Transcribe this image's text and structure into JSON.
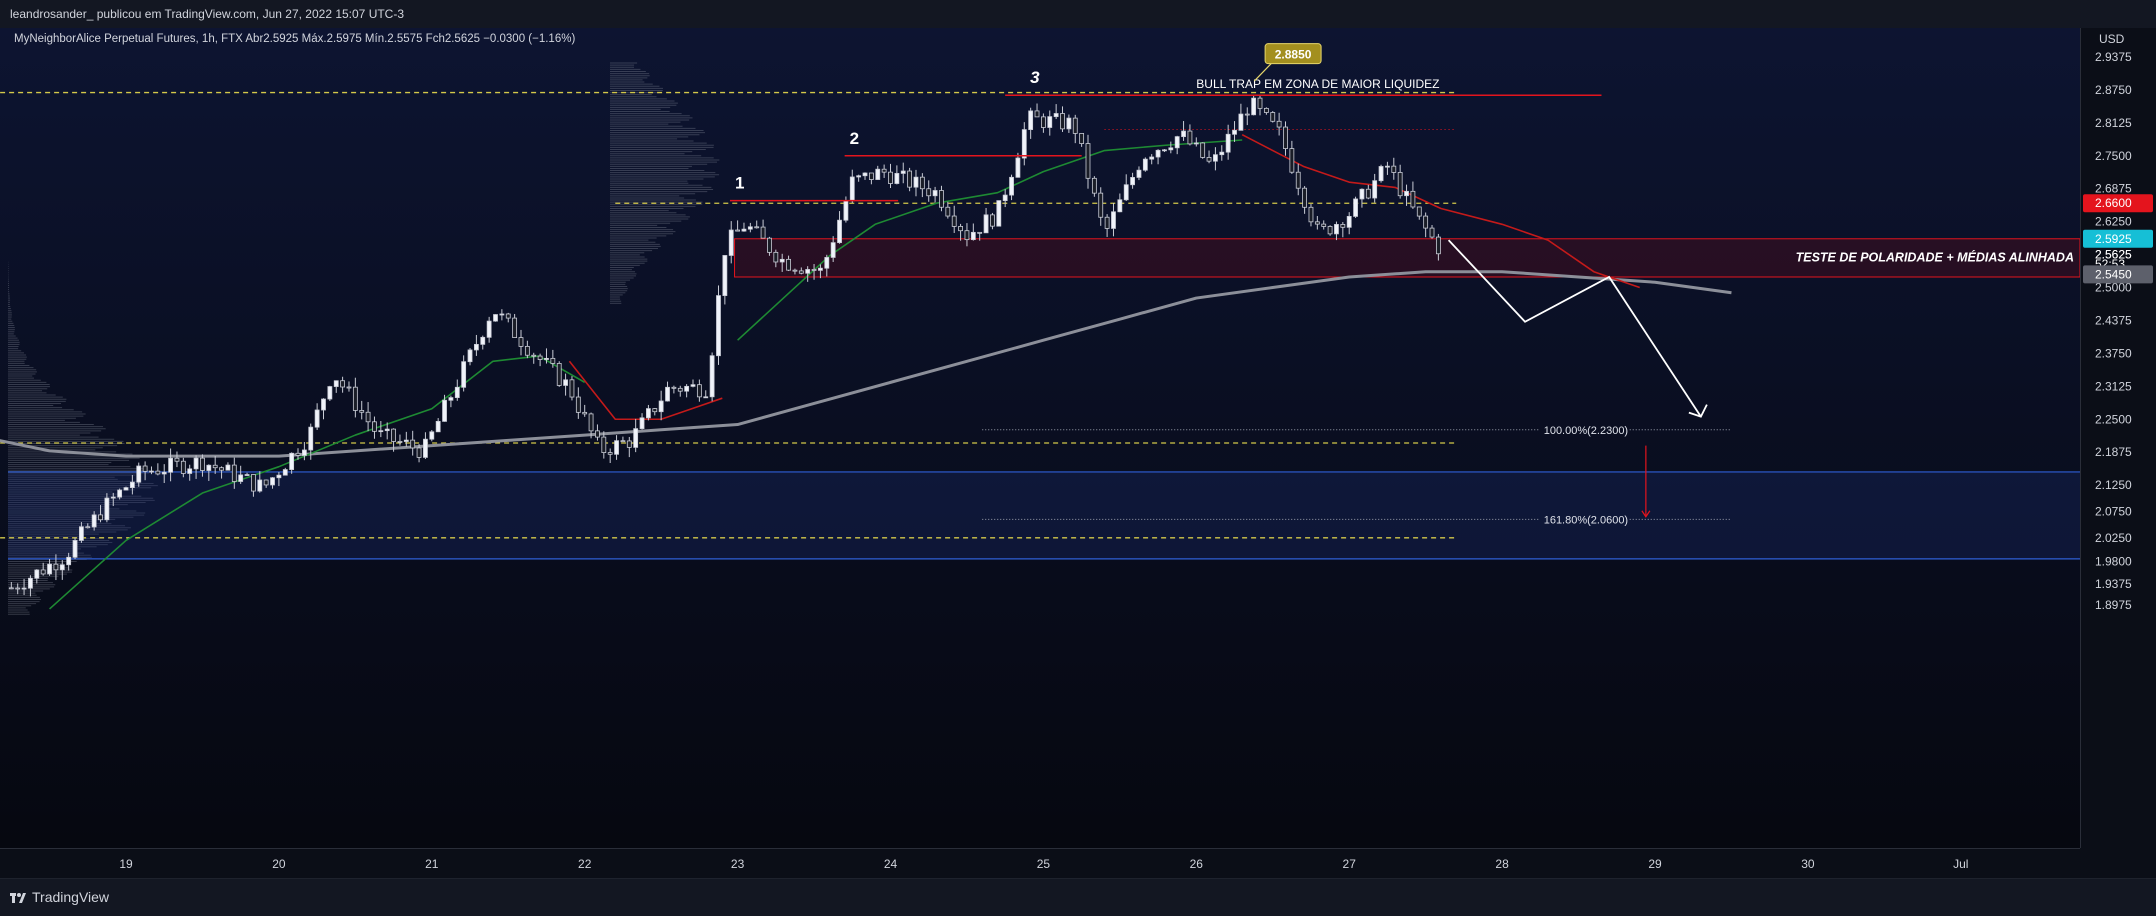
{
  "header": {
    "publisher": "leandrosander_ publicou em TradingView.com, Jun 27, 2022 15:07 UTC-3",
    "symbol_line": "MyNeighborAlice Perpetual Futures, 1h, FTX  Abr2.5925  Máx.2.5975  Mín.2.5575  Fch2.5625  −0.0300 (−1.16%)"
  },
  "footer": {
    "brand": "TradingView"
  },
  "chart_data": {
    "type": "candlestick",
    "currency": "USD",
    "ylim": [
      1.87,
      2.99
    ],
    "y_ticks": [
      "2.9375",
      "2.8750",
      "2.8125",
      "2.7500",
      "2.6875",
      "2.6250",
      "2.5625",
      "2.5000",
      "2.4375",
      "2.3750",
      "2.3125",
      "2.2500",
      "2.1875",
      "2.1250",
      "2.0750",
      "2.0250",
      "1.9800",
      "1.9375",
      "1.8975"
    ],
    "x_ticks": [
      "19",
      "20",
      "21",
      "22",
      "23",
      "24",
      "25",
      "26",
      "27",
      "28",
      "29",
      "30",
      "Jul"
    ],
    "price_tags": [
      {
        "label": "2.6600",
        "value": 2.66,
        "color": "#e4141d"
      },
      {
        "label": "2.5925",
        "value": 2.5925,
        "color": "#16bfd6"
      },
      {
        "label": "2.5625",
        "value": 2.5625,
        "color": "#0b0e17"
      },
      {
        "label": "52:53",
        "value": 2.545,
        "color": "#0b0e17"
      },
      {
        "label": "2.5450",
        "value": 2.525,
        "color": "#5d606b"
      }
    ],
    "ohlc_anchors": [
      {
        "day": 18.25,
        "price": 1.93
      },
      {
        "day": 18.6,
        "price": 1.99
      },
      {
        "day": 18.85,
        "price": 2.08
      },
      {
        "day": 19.1,
        "price": 2.15
      },
      {
        "day": 19.5,
        "price": 2.17
      },
      {
        "day": 19.9,
        "price": 2.12
      },
      {
        "day": 20.2,
        "price": 2.22
      },
      {
        "day": 20.35,
        "price": 2.34
      },
      {
        "day": 20.65,
        "price": 2.22
      },
      {
        "day": 20.95,
        "price": 2.19
      },
      {
        "day": 21.2,
        "price": 2.34
      },
      {
        "day": 21.4,
        "price": 2.46
      },
      {
        "day": 21.65,
        "price": 2.38
      },
      {
        "day": 21.9,
        "price": 2.31
      },
      {
        "day": 22.1,
        "price": 2.19
      },
      {
        "day": 22.3,
        "price": 2.21
      },
      {
        "day": 22.55,
        "price": 2.31
      },
      {
        "day": 22.8,
        "price": 2.31
      },
      {
        "day": 22.92,
        "price": 2.58
      },
      {
        "day": 23.05,
        "price": 2.62
      },
      {
        "day": 23.3,
        "price": 2.55
      },
      {
        "day": 23.55,
        "price": 2.53
      },
      {
        "day": 23.75,
        "price": 2.7
      },
      {
        "day": 23.95,
        "price": 2.72
      },
      {
        "day": 24.3,
        "price": 2.68
      },
      {
        "day": 24.5,
        "price": 2.6
      },
      {
        "day": 24.7,
        "price": 2.64
      },
      {
        "day": 24.9,
        "price": 2.82
      },
      {
        "day": 25.2,
        "price": 2.81
      },
      {
        "day": 25.4,
        "price": 2.6
      },
      {
        "day": 25.65,
        "price": 2.75
      },
      {
        "day": 25.9,
        "price": 2.79
      },
      {
        "day": 26.1,
        "price": 2.73
      },
      {
        "day": 26.35,
        "price": 2.85
      },
      {
        "day": 26.55,
        "price": 2.79
      },
      {
        "day": 26.8,
        "price": 2.6
      },
      {
        "day": 27.0,
        "price": 2.64
      },
      {
        "day": 27.25,
        "price": 2.73
      },
      {
        "day": 27.45,
        "price": 2.63
      },
      {
        "day": 27.6,
        "price": 2.57
      }
    ],
    "ema_green": [
      [
        18.5,
        1.89
      ],
      [
        19.0,
        2.02
      ],
      [
        19.5,
        2.11
      ],
      [
        20.0,
        2.16
      ],
      [
        20.5,
        2.22
      ],
      [
        21.0,
        2.27
      ],
      [
        21.4,
        2.36
      ],
      [
        21.7,
        2.37
      ],
      [
        22.0,
        2.32
      ]
    ],
    "ema_green_2": [
      [
        23.0,
        2.4
      ],
      [
        23.3,
        2.48
      ],
      [
        23.6,
        2.56
      ],
      [
        23.9,
        2.62
      ],
      [
        24.3,
        2.66
      ],
      [
        24.7,
        2.68
      ],
      [
        25.0,
        2.72
      ],
      [
        25.4,
        2.76
      ],
      [
        25.8,
        2.77
      ],
      [
        26.3,
        2.78
      ]
    ],
    "ema_red": [
      [
        21.9,
        2.36
      ],
      [
        22.2,
        2.25
      ],
      [
        22.5,
        2.25
      ],
      [
        22.7,
        2.27
      ],
      [
        22.9,
        2.29
      ]
    ],
    "ema_red_2": [
      [
        26.3,
        2.79
      ],
      [
        26.7,
        2.73
      ],
      [
        27.0,
        2.7
      ],
      [
        27.3,
        2.69
      ],
      [
        27.6,
        2.65
      ],
      [
        28.0,
        2.62
      ],
      [
        28.3,
        2.59
      ],
      [
        28.6,
        2.53
      ],
      [
        28.9,
        2.5
      ]
    ],
    "ma_gray": [
      [
        18.0,
        2.22
      ],
      [
        18.5,
        2.19
      ],
      [
        19.0,
        2.18
      ],
      [
        19.5,
        2.18
      ],
      [
        20.0,
        2.18
      ],
      [
        20.5,
        2.19
      ],
      [
        21.0,
        2.2
      ],
      [
        21.5,
        2.21
      ],
      [
        22.0,
        2.22
      ],
      [
        22.5,
        2.23
      ],
      [
        23.0,
        2.24
      ],
      [
        23.5,
        2.28
      ],
      [
        24.0,
        2.32
      ],
      [
        24.5,
        2.36
      ],
      [
        25.0,
        2.4
      ],
      [
        25.5,
        2.44
      ],
      [
        26.0,
        2.48
      ],
      [
        26.5,
        2.5
      ],
      [
        27.0,
        2.52
      ],
      [
        27.5,
        2.53
      ],
      [
        28.0,
        2.53
      ],
      [
        28.5,
        2.52
      ],
      [
        29.0,
        2.51
      ],
      [
        29.5,
        2.49
      ]
    ],
    "hlines": [
      {
        "price": 2.87,
        "style": "dashed",
        "color": "#d4c94a",
        "from": 18,
        "to": 27.7
      },
      {
        "price": 2.66,
        "style": "dashed",
        "color": "#d4c94a",
        "from": 22.2,
        "to": 27.7
      },
      {
        "price": 2.205,
        "style": "dashed",
        "color": "#d4c94a",
        "from": 18,
        "to": 27.7
      },
      {
        "price": 2.025,
        "style": "dashed",
        "color": "#d4c94a",
        "from": 18,
        "to": 27.7
      },
      {
        "price": 2.8,
        "style": "dotted",
        "color": "#e4141d",
        "from": 25.4,
        "to": 27.7
      }
    ],
    "resistance_lines": [
      {
        "label": "1",
        "price": 2.665,
        "from": 22.95,
        "to": 24.05
      },
      {
        "label": "2",
        "price": 2.75,
        "from": 23.7,
        "to": 25.25
      },
      {
        "label": "3",
        "price": 2.865,
        "from": 24.75,
        "to": 28.65
      }
    ],
    "bull_trap_label": "BULL TRAP EM ZONA DE MAIOR LIQUIDEZ",
    "peak_label": "2.8850",
    "polarity_zone": {
      "top": 2.5925,
      "bottom": 2.52,
      "label": "TESTE DE POLARIDADE + MÉDIAS ALINHADA"
    },
    "blue_zone": {
      "top": 2.15,
      "bottom": 1.985
    },
    "projection": [
      [
        27.65,
        2.59
      ],
      [
        28.15,
        2.435
      ],
      [
        28.7,
        2.52
      ],
      [
        29.3,
        2.255
      ]
    ],
    "fib_levels": [
      {
        "label": "100.00%(2.2300)",
        "price": 2.23,
        "from": 24.6,
        "to": 28.9
      },
      {
        "label": "161.80%(2.0600)",
        "price": 2.06,
        "from": 24.6,
        "to": 28.9
      }
    ],
    "fib_arrow": {
      "day": 29.3,
      "from": 2.2,
      "to": 2.065
    }
  }
}
